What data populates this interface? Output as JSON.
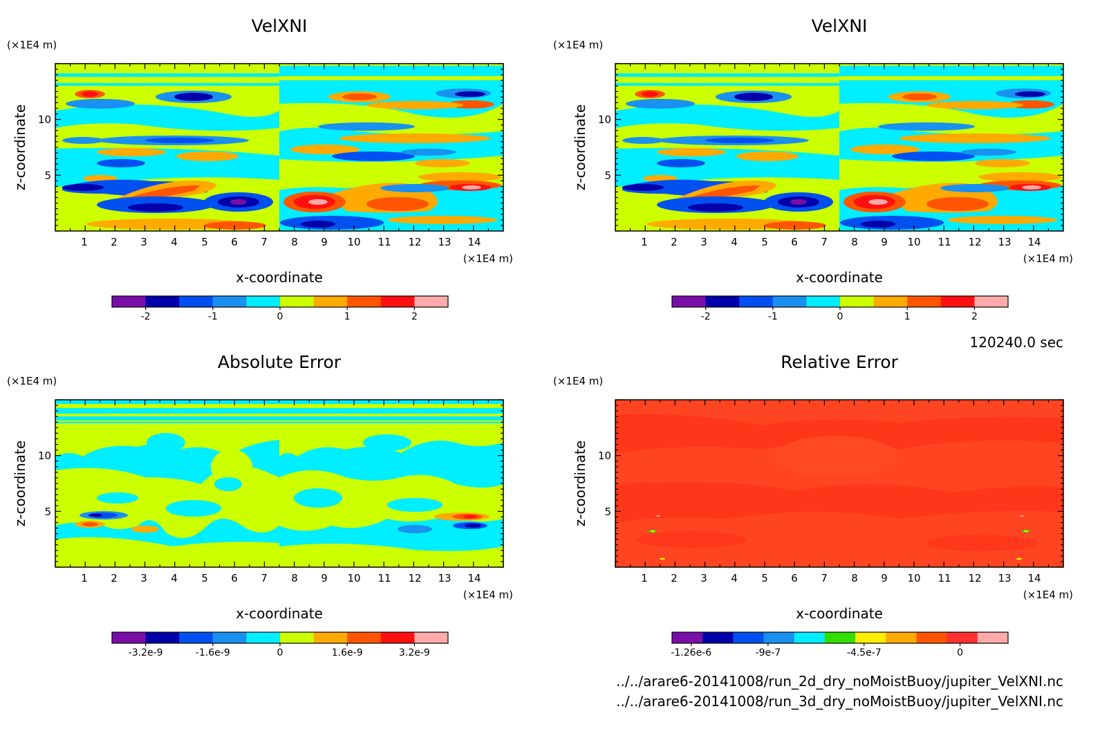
{
  "chart_data": [
    {
      "type": "heatmap",
      "title": "VelXNI",
      "xlabel": "x-coordinate",
      "ylabel": "z-coordinate",
      "x_unit": "(×1E4 m)",
      "y_unit": "(×1E4 m)",
      "xlim": [
        0,
        15
      ],
      "ylim": [
        0,
        15
      ],
      "x_ticks": [
        "1",
        "2",
        "3",
        "4",
        "5",
        "6",
        "7",
        "8",
        "9",
        "10",
        "11",
        "12",
        "13",
        "14"
      ],
      "y_ticks": [
        "5",
        "10"
      ],
      "colorbar": {
        "colors": [
          "#7a0fa8",
          "#0000aa",
          "#0050f0",
          "#1a90f0",
          "#00eeff",
          "#ccff00",
          "#ffaa00",
          "#ff5500",
          "#ff1010",
          "#ffaaaa"
        ],
        "ticks": [
          "-2",
          "-1",
          "0",
          "1",
          "2"
        ],
        "tick_values": [
          -2,
          -1,
          0,
          1,
          2
        ],
        "range": [
          -2.5,
          2.5
        ]
      }
    },
    {
      "type": "heatmap",
      "title": "VelXNI",
      "xlabel": "x-coordinate",
      "ylabel": "z-coordinate",
      "x_unit": "(×1E4 m)",
      "y_unit": "(×1E4 m)",
      "xlim": [
        0,
        15
      ],
      "ylim": [
        0,
        15
      ],
      "x_ticks": [
        "1",
        "2",
        "3",
        "4",
        "5",
        "6",
        "7",
        "8",
        "9",
        "10",
        "11",
        "12",
        "13",
        "14"
      ],
      "y_ticks": [
        "5",
        "10"
      ],
      "colorbar": {
        "colors": [
          "#7a0fa8",
          "#0000aa",
          "#0050f0",
          "#1a90f0",
          "#00eeff",
          "#ccff00",
          "#ffaa00",
          "#ff5500",
          "#ff1010",
          "#ffaaaa"
        ],
        "ticks": [
          "-2",
          "-1",
          "0",
          "1",
          "2"
        ],
        "tick_values": [
          -2,
          -1,
          0,
          1,
          2
        ],
        "range": [
          -2.5,
          2.5
        ]
      }
    },
    {
      "type": "heatmap",
      "title": "Absolute Error",
      "xlabel": "x-coordinate",
      "ylabel": "z-coordinate",
      "x_unit": "(×1E4 m)",
      "y_unit": "(×1E4 m)",
      "xlim": [
        0,
        15
      ],
      "ylim": [
        0,
        15
      ],
      "x_ticks": [
        "1",
        "2",
        "3",
        "4",
        "5",
        "6",
        "7",
        "8",
        "9",
        "10",
        "11",
        "12",
        "13",
        "14"
      ],
      "y_ticks": [
        "5",
        "10"
      ],
      "colorbar": {
        "colors": [
          "#7a0fa8",
          "#0000aa",
          "#0050f0",
          "#1a90f0",
          "#00eeff",
          "#ccff00",
          "#ffaa00",
          "#ff5500",
          "#ff1010",
          "#ffaaaa"
        ],
        "ticks": [
          "-3.2e-9",
          "-1.6e-9",
          "0",
          "1.6e-9",
          "3.2e-9"
        ],
        "tick_values": [
          -3.2e-09,
          -1.6e-09,
          0,
          1.6e-09,
          3.2e-09
        ],
        "range": [
          -4e-09,
          4e-09
        ]
      }
    },
    {
      "type": "heatmap",
      "title": "Relative Error",
      "xlabel": "x-coordinate",
      "ylabel": "z-coordinate",
      "x_unit": "(×1E4 m)",
      "y_unit": "(×1E4 m)",
      "xlim": [
        0,
        15
      ],
      "ylim": [
        0,
        15
      ],
      "x_ticks": [
        "1",
        "2",
        "3",
        "4",
        "5",
        "6",
        "7",
        "8",
        "9",
        "10",
        "11",
        "12",
        "13",
        "14"
      ],
      "y_ticks": [
        "5",
        "10"
      ],
      "colorbar": {
        "colors": [
          "#7a0fa8",
          "#0000aa",
          "#0050f0",
          "#1a90f0",
          "#00eeff",
          "#33dd00",
          "#ffee00",
          "#ffaa00",
          "#ff5500",
          "#ff3030",
          "#ffaaaa"
        ],
        "ticks": [
          "-1.26e-6",
          "-9e-7",
          "-4.5e-7",
          "0"
        ],
        "tick_values": [
          -1.26e-06,
          -9e-07,
          -4.5e-07,
          0
        ],
        "range": [
          -1.35e-06,
          2.25e-07
        ]
      }
    }
  ],
  "info": {
    "time": "120240.0 sec",
    "file1": "../../arare6-20141008/run_2d_dry_noMoistBuoy/jupiter_VelXNI.nc",
    "file2": "../../arare6-20141008/run_3d_dry_noMoistBuoy/jupiter_VelXNI.nc"
  },
  "colors": {
    "cyan": "#00eeff",
    "yellowgreen": "#ccff00",
    "relative_error_field": "#ff4422"
  }
}
